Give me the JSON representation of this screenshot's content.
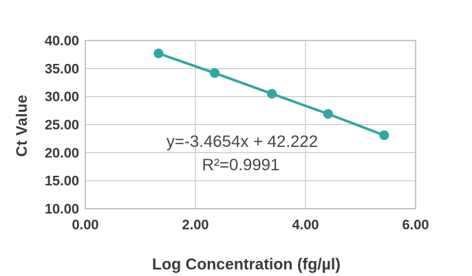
{
  "chart_data": {
    "type": "scatter",
    "title": "",
    "xlabel": "Log Concentration (fg/µl)",
    "ylabel": "Ct Value",
    "x": [
      1.33,
      2.35,
      3.39,
      4.41,
      5.43
    ],
    "y": [
      37.7,
      34.2,
      30.5,
      26.9,
      23.1
    ],
    "line_through_points": true,
    "trendline": {
      "slope": -3.4654,
      "intercept": 42.222,
      "r_squared": 0.9991
    },
    "annotations": {
      "equation": "y=-3.4654x + 42.222",
      "r_squared": "R²=0.9991"
    },
    "xlim": [
      0,
      6
    ],
    "ylim": [
      10,
      40
    ],
    "x_ticks": [
      0,
      2,
      4,
      6
    ],
    "x_tick_labels": [
      "0.00",
      "2.00",
      "4.00",
      "6.00"
    ],
    "y_ticks": [
      10,
      15,
      20,
      25,
      30,
      35,
      40
    ],
    "y_tick_labels": [
      "10.00",
      "15.00",
      "20.00",
      "25.00",
      "30.00",
      "35.00",
      "40.00"
    ],
    "grid": true,
    "legend": false,
    "marker": "circle",
    "colors": {
      "series": "#2ea6a1",
      "gridline": "#c8c8c8",
      "border": "#b4b4b4",
      "tick_text": "#3b3b3b",
      "annotation_text": "#474747"
    }
  }
}
